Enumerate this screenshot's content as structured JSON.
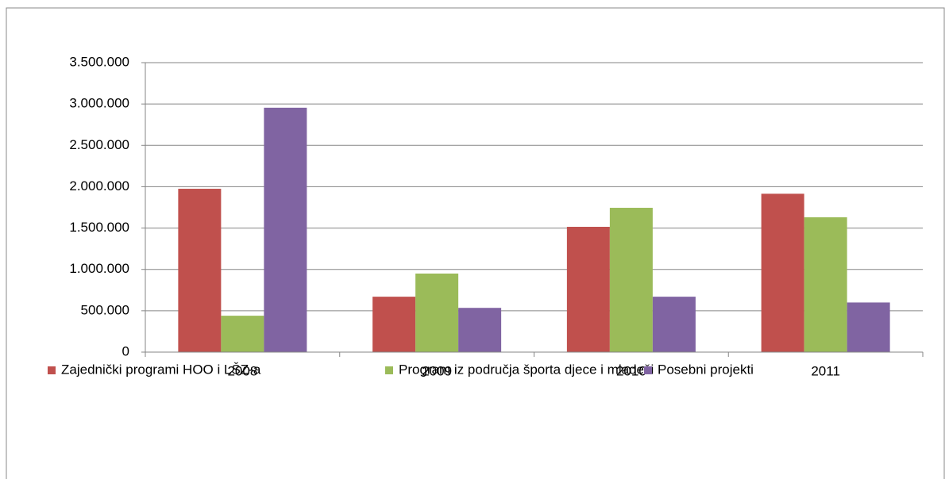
{
  "chart_data": {
    "type": "bar",
    "categories": [
      "2008",
      "2009",
      "2010",
      "2011"
    ],
    "series": [
      {
        "name": "Zajednički programi HOO i LŠZ-a",
        "color": "#c0504d",
        "values": [
          1975000,
          670000,
          1515000,
          1915000
        ]
      },
      {
        "name": "Program iz područja športa djece i mladeži",
        "color": "#9bbb59",
        "values": [
          440000,
          950000,
          1745000,
          1630000
        ]
      },
      {
        "name": "Posebni projekti",
        "color": "#8064a2",
        "values": [
          2955000,
          535000,
          670000,
          600000
        ]
      }
    ],
    "ylim": [
      0,
      3500000
    ],
    "yticks": [
      0,
      {
        "value": 500000,
        "label": "500.000"
      },
      {
        "value": 1000000,
        "label": "1.000.000"
      },
      {
        "value": 1500000,
        "label": "1.500.000"
      },
      {
        "value": 2000000,
        "label": "2.000.000"
      },
      {
        "value": 2500000,
        "label": "2.500.000"
      },
      {
        "value": 3000000,
        "label": "3.000.000"
      },
      {
        "value": 3500000,
        "label": "3.500.000"
      }
    ],
    "grid": true,
    "legend": "bottom"
  }
}
